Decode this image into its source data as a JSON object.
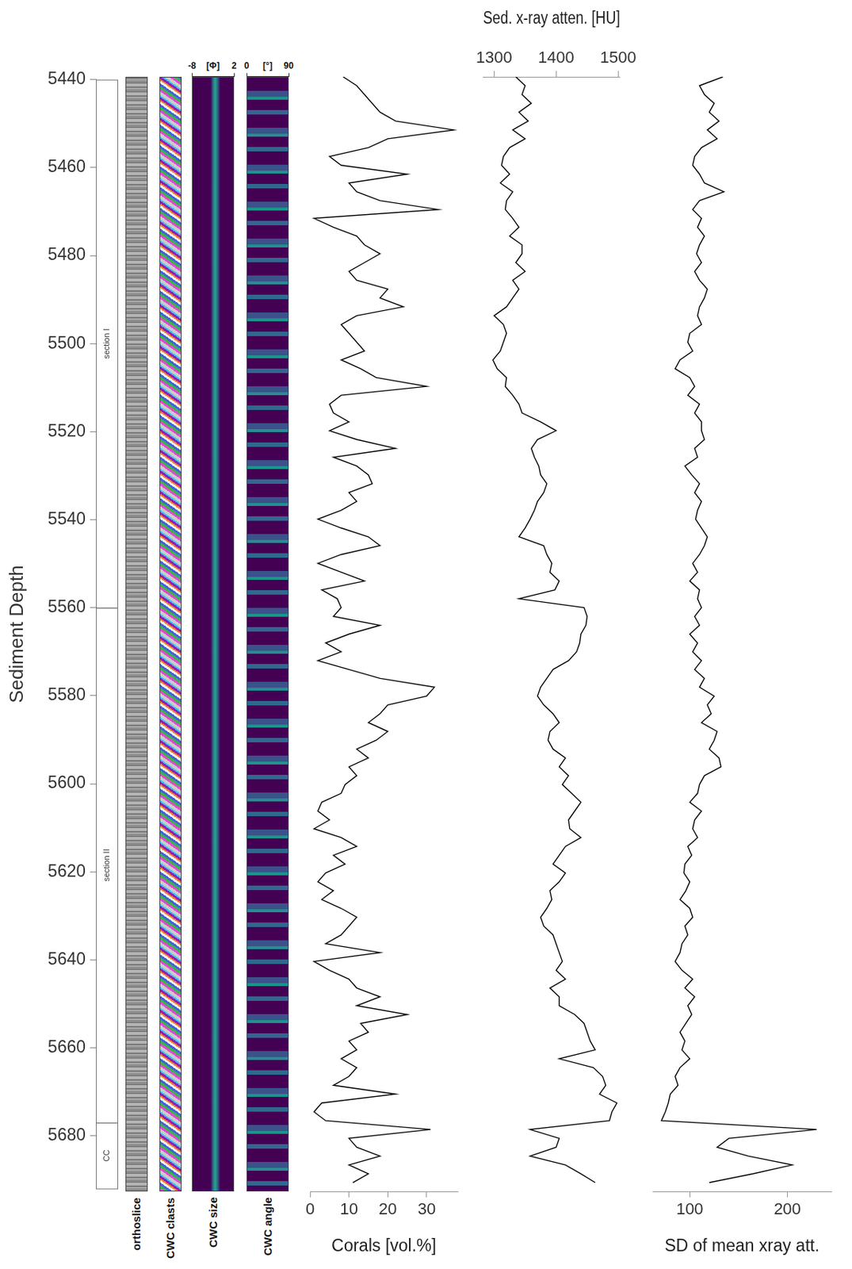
{
  "depth_axis": {
    "label": "Sediment Depth",
    "lim": [
      5440,
      5692
    ],
    "ticks": [
      5440,
      5460,
      5480,
      5500,
      5520,
      5540,
      5560,
      5580,
      5600,
      5620,
      5640,
      5660,
      5680
    ]
  },
  "sections": [
    {
      "label": "section I",
      "from": 5440,
      "to": 5560
    },
    {
      "label": "section II",
      "from": 5560,
      "to": 5677
    },
    {
      "label": "CC",
      "from": 5677,
      "to": 5692
    }
  ],
  "strips": [
    {
      "label": "orthoslice"
    },
    {
      "label": "CWC clasts"
    },
    {
      "label": "CWC size",
      "unit": "[Φ]",
      "ticks": [
        -8,
        2
      ]
    },
    {
      "label": "CWC angle",
      "unit": "[°]",
      "ticks": [
        0,
        90
      ]
    }
  ],
  "depth": [
    5440,
    5442,
    5444,
    5446,
    5448,
    5450,
    5452,
    5454,
    5456,
    5458,
    5460,
    5462,
    5464,
    5466,
    5468,
    5470,
    5472,
    5474,
    5476,
    5478,
    5480,
    5482,
    5484,
    5486,
    5488,
    5490,
    5492,
    5494,
    5496,
    5498,
    5500,
    5502,
    5504,
    5506,
    5508,
    5510,
    5512,
    5514,
    5516,
    5518,
    5520,
    5522,
    5524,
    5526,
    5528,
    5530,
    5532,
    5534,
    5536,
    5538,
    5540,
    5542,
    5544,
    5546,
    5548,
    5550,
    5552,
    5554,
    5556,
    5558,
    5560,
    5562,
    5564,
    5566,
    5568,
    5570,
    5572,
    5574,
    5576,
    5578,
    5580,
    5582,
    5584,
    5586,
    5588,
    5590,
    5592,
    5594,
    5596,
    5598,
    5600,
    5602,
    5604,
    5606,
    5608,
    5610,
    5612,
    5614,
    5616,
    5618,
    5620,
    5622,
    5624,
    5626,
    5628,
    5630,
    5632,
    5634,
    5636,
    5638,
    5640,
    5642,
    5644,
    5646,
    5648,
    5650,
    5652,
    5654,
    5656,
    5658,
    5660,
    5662,
    5664,
    5666,
    5668,
    5670,
    5672,
    5674,
    5676,
    5678,
    5680,
    5682,
    5684,
    5686,
    5688,
    5690
  ],
  "chart_data": [
    {
      "type": "line",
      "x_label": "Corals [vol.%]",
      "xlim": [
        0,
        38
      ],
      "xticks": [
        0,
        10,
        20,
        30
      ],
      "color": "#000000",
      "values": [
        8.5,
        12,
        14,
        16,
        18,
        22,
        37,
        20,
        15,
        5,
        8,
        25,
        10,
        12,
        18,
        33,
        1,
        6,
        12,
        14,
        18,
        14,
        10,
        12,
        20,
        18,
        24,
        12,
        8,
        10,
        12,
        14,
        8,
        13,
        17,
        30,
        8,
        5,
        6,
        10,
        5,
        12,
        22,
        6,
        12,
        15,
        16,
        10,
        12,
        8,
        2,
        8,
        15,
        18,
        8,
        2,
        8,
        14,
        3,
        7,
        8,
        6,
        18,
        10,
        4,
        8,
        2,
        10,
        18,
        32,
        30,
        20,
        18,
        15,
        20,
        17,
        12,
        15,
        10,
        12,
        9,
        8,
        3,
        2,
        5,
        1,
        8,
        12,
        6,
        9,
        4,
        2,
        6,
        3,
        8,
        12,
        10,
        8,
        4,
        18,
        1,
        5,
        10,
        12,
        18,
        12,
        25,
        13,
        15,
        10,
        12,
        8,
        12,
        10,
        6,
        22,
        3,
        1,
        4,
        31,
        10,
        12,
        18,
        10,
        15,
        11
      ]
    },
    {
      "type": "line",
      "x_label": "Sed. x-ray atten. [HU]",
      "xlim": [
        1282,
        1503
      ],
      "xticks": [
        1300,
        1400,
        1500
      ],
      "color": "#000000",
      "values": [
        1335,
        1350,
        1345,
        1360,
        1340,
        1355,
        1330,
        1350,
        1325,
        1315,
        1312,
        1325,
        1310,
        1330,
        1320,
        1318,
        1330,
        1340,
        1325,
        1345,
        1345,
        1335,
        1350,
        1330,
        1340,
        1330,
        1320,
        1300,
        1315,
        1320,
        1315,
        1310,
        1298,
        1305,
        1320,
        1318,
        1330,
        1340,
        1345,
        1375,
        1400,
        1370,
        1360,
        1365,
        1372,
        1375,
        1385,
        1380,
        1370,
        1365,
        1358,
        1350,
        1340,
        1380,
        1385,
        1393,
        1390,
        1405,
        1398,
        1340,
        1445,
        1450,
        1448,
        1440,
        1438,
        1433,
        1420,
        1395,
        1385,
        1375,
        1370,
        1380,
        1395,
        1405,
        1390,
        1387,
        1395,
        1415,
        1405,
        1420,
        1410,
        1425,
        1440,
        1430,
        1420,
        1422,
        1440,
        1415,
        1405,
        1395,
        1415,
        1405,
        1390,
        1393,
        1385,
        1375,
        1380,
        1395,
        1400,
        1405,
        1410,
        1400,
        1415,
        1390,
        1405,
        1405,
        1430,
        1445,
        1450,
        1455,
        1463,
        1405,
        1460,
        1475,
        1480,
        1470,
        1498,
        1490,
        1486,
        1358,
        1405,
        1400,
        1358,
        1415,
        1440,
        1463
      ]
    },
    {
      "type": "line",
      "x_label": "SD of mean xray att.",
      "xlim": [
        62,
        245
      ],
      "xticks": [
        100,
        200
      ],
      "color": "#000000",
      "values": [
        134,
        110,
        115,
        125,
        120,
        130,
        118,
        128,
        112,
        105,
        103,
        110,
        115,
        135,
        110,
        103,
        112,
        108,
        115,
        110,
        107,
        112,
        105,
        110,
        118,
        115,
        110,
        108,
        112,
        100,
        98,
        103,
        90,
        85,
        100,
        105,
        98,
        110,
        105,
        112,
        112,
        115,
        105,
        108,
        95,
        102,
        110,
        105,
        112,
        108,
        106,
        112,
        118,
        115,
        110,
        103,
        108,
        100,
        110,
        108,
        112,
        105,
        110,
        100,
        108,
        103,
        112,
        105,
        115,
        110,
        125,
        118,
        122,
        112,
        128,
        125,
        120,
        130,
        132,
        115,
        110,
        108,
        100,
        112,
        105,
        103,
        108,
        98,
        102,
        95,
        94,
        100,
        96,
        90,
        100,
        103,
        95,
        98,
        92,
        90,
        85,
        92,
        103,
        95,
        105,
        98,
        102,
        96,
        90,
        95,
        92,
        100,
        90,
        85,
        88,
        80,
        78,
        75,
        71,
        230,
        140,
        128,
        160,
        205,
        165,
        120
      ]
    }
  ]
}
